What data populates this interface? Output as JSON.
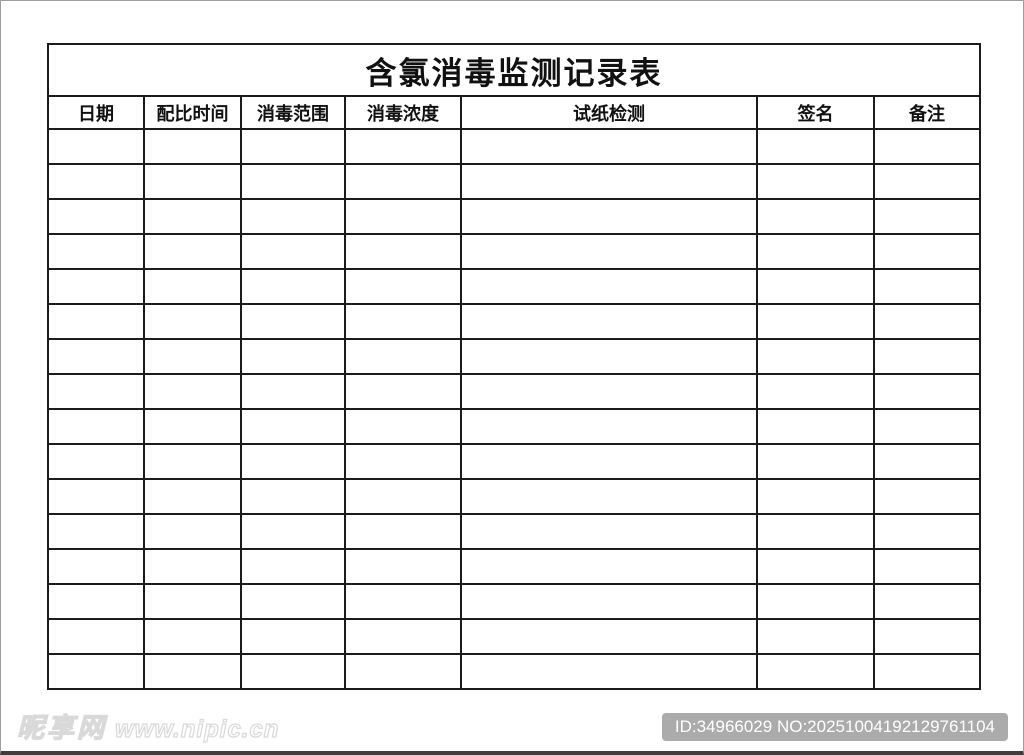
{
  "table": {
    "title": "含氯消毒监测记录表",
    "columns": [
      "日期",
      "配比时间",
      "消毒范围",
      "消毒浓度",
      "试纸检测",
      "签名",
      "备注"
    ],
    "empty_row_count": 16
  },
  "watermark": {
    "site_name": "昵享网",
    "site_url": "www.nipic.cn"
  },
  "badge": {
    "text": "ID:34966029 NO:20251004192129761104"
  },
  "colors": {
    "table_border": "#1b1b1b",
    "page_border": "#9e9e9e",
    "bottom_bar": "#3d3d3d",
    "badge_background": "#ababab",
    "badge_text": "#ffffff",
    "watermark_outline": "#d9d9d9",
    "background": "#ffffff"
  }
}
